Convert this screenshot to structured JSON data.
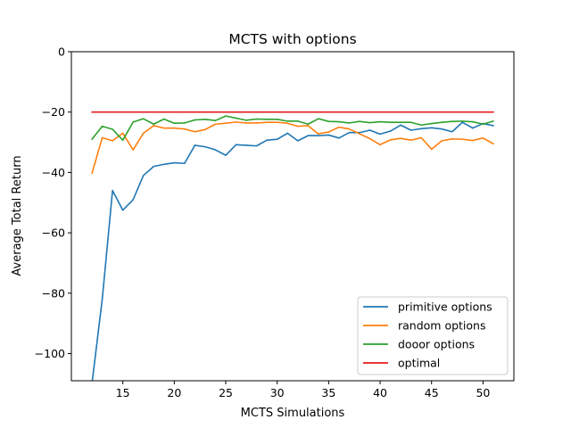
{
  "chart_data": {
    "type": "line",
    "title": "MCTS with options",
    "xlabel": "MCTS Simulations",
    "ylabel": "Average Total Return",
    "xlim": [
      10,
      53
    ],
    "ylim": [
      -109,
      0
    ],
    "xticks": [
      15,
      20,
      25,
      30,
      35,
      40,
      45,
      50
    ],
    "yticks": [
      0,
      -20,
      -40,
      -60,
      -80,
      -100
    ],
    "ytick_labels": [
      "0",
      "−20",
      "−40",
      "−60",
      "−80",
      "−100"
    ],
    "legend_position": "lower-right",
    "grid": false,
    "x": [
      12,
      13,
      14,
      15,
      16,
      17,
      18,
      19,
      20,
      21,
      22,
      23,
      24,
      25,
      26,
      27,
      28,
      29,
      30,
      31,
      32,
      33,
      34,
      35,
      36,
      37,
      38,
      39,
      40,
      41,
      42,
      43,
      44,
      45,
      46,
      47,
      48,
      49,
      50,
      51
    ],
    "series": [
      {
        "name": "primitive options",
        "color": "#1f77b4",
        "values": [
          -110,
          -82,
          -46,
          -52.5,
          -49,
          -41,
          -38,
          -37.3,
          -36.8,
          -37,
          -31,
          -31.5,
          -32.5,
          -34.3,
          -30.8,
          -31,
          -31.2,
          -29.3,
          -29,
          -27,
          -29.5,
          -27.8,
          -27.8,
          -27.6,
          -28.6,
          -26.8,
          -26.8,
          -26,
          -27.3,
          -26.3,
          -24.3,
          -26,
          -25.5,
          -25.2,
          -25.6,
          -26.5,
          -23.4,
          -25.3,
          -23.8,
          -24.5
        ]
      },
      {
        "name": "random options",
        "color": "#ff7f0e",
        "values": [
          -40.3,
          -28.5,
          -29.5,
          -27,
          -32.5,
          -27,
          -24.5,
          -25.3,
          -25.3,
          -25.6,
          -26.5,
          -25.8,
          -24,
          -23.7,
          -23.3,
          -23.6,
          -23.6,
          -23.4,
          -23.4,
          -23.7,
          -24.7,
          -24.5,
          -27.2,
          -26.6,
          -25,
          -25.6,
          -27.2,
          -28.8,
          -30.8,
          -29.2,
          -28.7,
          -29.3,
          -28.5,
          -32.3,
          -29.5,
          -28.9,
          -29,
          -29.4,
          -28.6,
          -30.5
        ]
      },
      {
        "name": "dooor options",
        "color": "#2ca02c",
        "values": [
          -29,
          -24.7,
          -25.7,
          -29.3,
          -23.3,
          -22.2,
          -24,
          -22.3,
          -23.7,
          -23.6,
          -22.6,
          -22.4,
          -22.8,
          -21.3,
          -22,
          -22.7,
          -22.3,
          -22.4,
          -22.4,
          -23,
          -23,
          -24,
          -22.2,
          -23.1,
          -23.2,
          -23.6,
          -23.1,
          -23.5,
          -23.2,
          -23.4,
          -23.4,
          -23.4,
          -24.3,
          -23.8,
          -23.4,
          -23.1,
          -23,
          -23.2,
          -24,
          -23
        ]
      },
      {
        "name": "optimal",
        "color": "#e31a1c",
        "values": [
          -20,
          -20,
          -20,
          -20,
          -20,
          -20,
          -20,
          -20,
          -20,
          -20,
          -20,
          -20,
          -20,
          -20,
          -20,
          -20,
          -20,
          -20,
          -20,
          -20,
          -20,
          -20,
          -20,
          -20,
          -20,
          -20,
          -20,
          -20,
          -20,
          -20,
          -20,
          -20,
          -20,
          -20,
          -20,
          -20,
          -20,
          -20,
          -20,
          -20
        ]
      }
    ]
  }
}
